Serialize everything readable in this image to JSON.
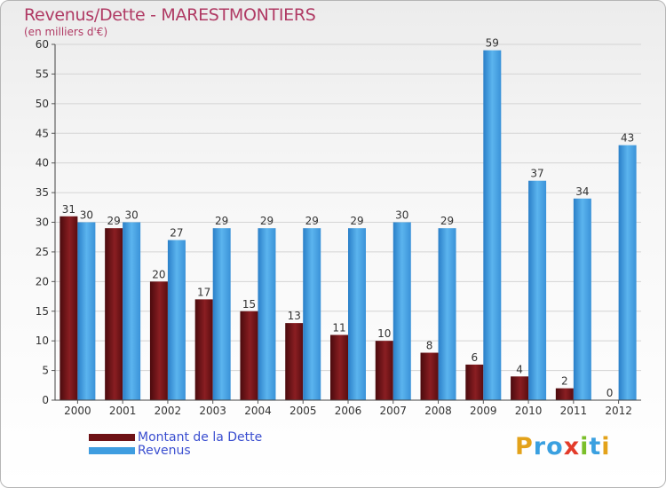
{
  "chart_data": {
    "type": "bar",
    "title": "Revenus/Dette - MARESTMONTIERS",
    "subtitle": "(en milliers d'€)",
    "categories": [
      "2000",
      "2001",
      "2002",
      "2003",
      "2004",
      "2005",
      "2006",
      "2007",
      "2008",
      "2009",
      "2010",
      "2011",
      "2012"
    ],
    "series": [
      {
        "name": "Montant de la Dette",
        "color": "#6e1216",
        "values": [
          31,
          29,
          20,
          17,
          15,
          13,
          11,
          10,
          8,
          6,
          4,
          2,
          0
        ]
      },
      {
        "name": "Revenus",
        "color": "#3f9de0",
        "values": [
          30,
          30,
          27,
          29,
          29,
          29,
          29,
          30,
          29,
          59,
          37,
          34,
          43
        ]
      }
    ],
    "ylim": [
      0,
      60
    ],
    "yticks": [
      0,
      5,
      10,
      15,
      20,
      25,
      30,
      35,
      40,
      45,
      50,
      55,
      60
    ],
    "grid": true,
    "legend": "bottom-left"
  },
  "logo": {
    "text": "Proxiti",
    "letters": [
      "P",
      "r",
      "o",
      "x",
      "i",
      "t",
      "i"
    ],
    "colors": [
      "#e3a21a",
      "#3aa0e0",
      "#3aa0e0",
      "#e33b2a",
      "#7bbf2a",
      "#3aa0e0",
      "#e3a21a"
    ]
  }
}
